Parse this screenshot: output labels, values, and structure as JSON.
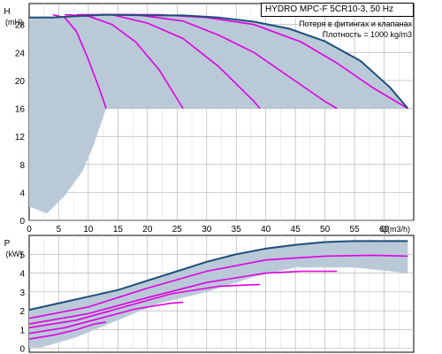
{
  "header": {
    "title": "HYDRO MPC-F 5CR10-3, 50 Hz",
    "note_line1": "Потеря в фитингах и клапанах",
    "note_line2": "Плотность = 1000 kg/m3"
  },
  "colors": {
    "envelope": "#b9c9d8",
    "max_curve": "#1f4e79",
    "speed_curve": "#e000e0",
    "grid": "#aaaaaa"
  },
  "chart_data": [
    {
      "type": "area",
      "panel": "head",
      "xlabel": "Q(m3/h)",
      "ylabel_symbol": "H",
      "ylabel_unit": "(mH)",
      "xlim": [
        0,
        65
      ],
      "ylim": [
        0,
        31
      ],
      "x_ticks": [
        0,
        5,
        10,
        15,
        20,
        25,
        30,
        35,
        40,
        45,
        50,
        55,
        60
      ],
      "y_ticks": [
        0,
        4,
        8,
        12,
        16,
        20,
        24,
        28
      ],
      "grid": true,
      "min_head_line": 16,
      "envelope_upper": [
        [
          0,
          29
        ],
        [
          4,
          29
        ],
        [
          8,
          29.2
        ],
        [
          13,
          29.4
        ],
        [
          20,
          29.3
        ],
        [
          26,
          29.3
        ],
        [
          32,
          29
        ],
        [
          38,
          28.4
        ],
        [
          44,
          27.4
        ],
        [
          50,
          25.6
        ],
        [
          56,
          22.8
        ],
        [
          61,
          19
        ],
        [
          64,
          16
        ]
      ],
      "envelope_lower": [
        [
          13,
          16
        ],
        [
          11,
          11
        ],
        [
          9,
          7
        ],
        [
          6,
          3.5
        ],
        [
          3,
          1
        ],
        [
          0,
          2
        ]
      ],
      "series": [
        {
          "points": [
            [
              4,
              29.4
            ],
            [
              6,
              29
            ],
            [
              8,
              27
            ],
            [
              10,
              23
            ],
            [
              12,
              18.5
            ],
            [
              13,
              16
            ]
          ]
        },
        {
          "points": [
            [
              6,
              29.4
            ],
            [
              10,
              29.2
            ],
            [
              14,
              28
            ],
            [
              18,
              25.5
            ],
            [
              22,
              21.5
            ],
            [
              26,
              16
            ]
          ]
        },
        {
          "points": [
            [
              8,
              29.4
            ],
            [
              14,
              29.4
            ],
            [
              20,
              28.2
            ],
            [
              26,
              26
            ],
            [
              32,
              22
            ],
            [
              38,
              17
            ],
            [
              39,
              16
            ]
          ]
        },
        {
          "points": [
            [
              12,
              29.4
            ],
            [
              18,
              29.4
            ],
            [
              26,
              28.5
            ],
            [
              32,
              26.5
            ],
            [
              38,
              24
            ],
            [
              44,
              20.5
            ],
            [
              50,
              17
            ],
            [
              52,
              16
            ]
          ]
        },
        {
          "points": [
            [
              14,
              29.4
            ],
            [
              22,
              29.4
            ],
            [
              30,
              29
            ],
            [
              38,
              28
            ],
            [
              46,
              25.5
            ],
            [
              52,
              22.5
            ],
            [
              58,
              19
            ],
            [
              64,
              16
            ]
          ]
        }
      ]
    },
    {
      "type": "area",
      "panel": "power",
      "ylabel_symbol": "P",
      "ylabel_unit": "(kW)",
      "xlim": [
        0,
        65
      ],
      "ylim": [
        -0.2,
        6
      ],
      "y_ticks": [
        0,
        1,
        2,
        3,
        4,
        5
      ],
      "grid": true,
      "envelope_upper": [
        [
          0,
          2.05
        ],
        [
          5,
          2.4
        ],
        [
          10,
          2.75
        ],
        [
          15,
          3.1
        ],
        [
          20,
          3.6
        ],
        [
          25,
          4.1
        ],
        [
          30,
          4.6
        ],
        [
          35,
          5.0
        ],
        [
          40,
          5.3
        ],
        [
          45,
          5.5
        ],
        [
          50,
          5.65
        ],
        [
          55,
          5.7
        ],
        [
          60,
          5.7
        ],
        [
          64,
          5.7
        ]
      ],
      "envelope_lower": [
        [
          64,
          4.0
        ],
        [
          55,
          4.3
        ],
        [
          45,
          4.3
        ],
        [
          38,
          3.8
        ],
        [
          30,
          3.0
        ],
        [
          22,
          2.4
        ],
        [
          15,
          1.5
        ],
        [
          8,
          0.6
        ],
        [
          2,
          0.05
        ],
        [
          0,
          0.05
        ]
      ],
      "series": [
        {
          "points": [
            [
              0,
              0.5
            ],
            [
              4,
              0.7
            ],
            [
              8,
              1.0
            ],
            [
              11,
              1.3
            ],
            [
              13,
              1.4
            ]
          ]
        },
        {
          "points": [
            [
              0,
              0.8
            ],
            [
              6,
              1.1
            ],
            [
              12,
              1.6
            ],
            [
              18,
              2.1
            ],
            [
              24,
              2.4
            ],
            [
              26,
              2.45
            ]
          ]
        },
        {
          "points": [
            [
              0,
              1.1
            ],
            [
              8,
              1.5
            ],
            [
              16,
              2.2
            ],
            [
              24,
              2.9
            ],
            [
              32,
              3.3
            ],
            [
              39,
              3.4
            ]
          ]
        },
        {
          "points": [
            [
              0,
              1.3
            ],
            [
              10,
              1.85
            ],
            [
              20,
              2.7
            ],
            [
              30,
              3.5
            ],
            [
              40,
              4.0
            ],
            [
              46,
              4.1
            ],
            [
              52,
              4.1
            ]
          ]
        },
        {
          "points": [
            [
              0,
              1.6
            ],
            [
              10,
              2.2
            ],
            [
              20,
              3.2
            ],
            [
              30,
              4.1
            ],
            [
              40,
              4.7
            ],
            [
              50,
              4.9
            ],
            [
              58,
              4.95
            ],
            [
              64,
              4.9
            ]
          ]
        },
        {
          "points": [
            [
              0,
              2.05
            ],
            [
              5,
              2.4
            ],
            [
              10,
              2.75
            ],
            [
              15,
              3.1
            ],
            [
              20,
              3.6
            ],
            [
              25,
              4.1
            ],
            [
              30,
              4.6
            ],
            [
              35,
              5.0
            ],
            [
              40,
              5.3
            ],
            [
              45,
              5.5
            ],
            [
              50,
              5.65
            ],
            [
              55,
              5.7
            ],
            [
              60,
              5.7
            ],
            [
              64,
              5.7
            ]
          ]
        }
      ]
    }
  ]
}
